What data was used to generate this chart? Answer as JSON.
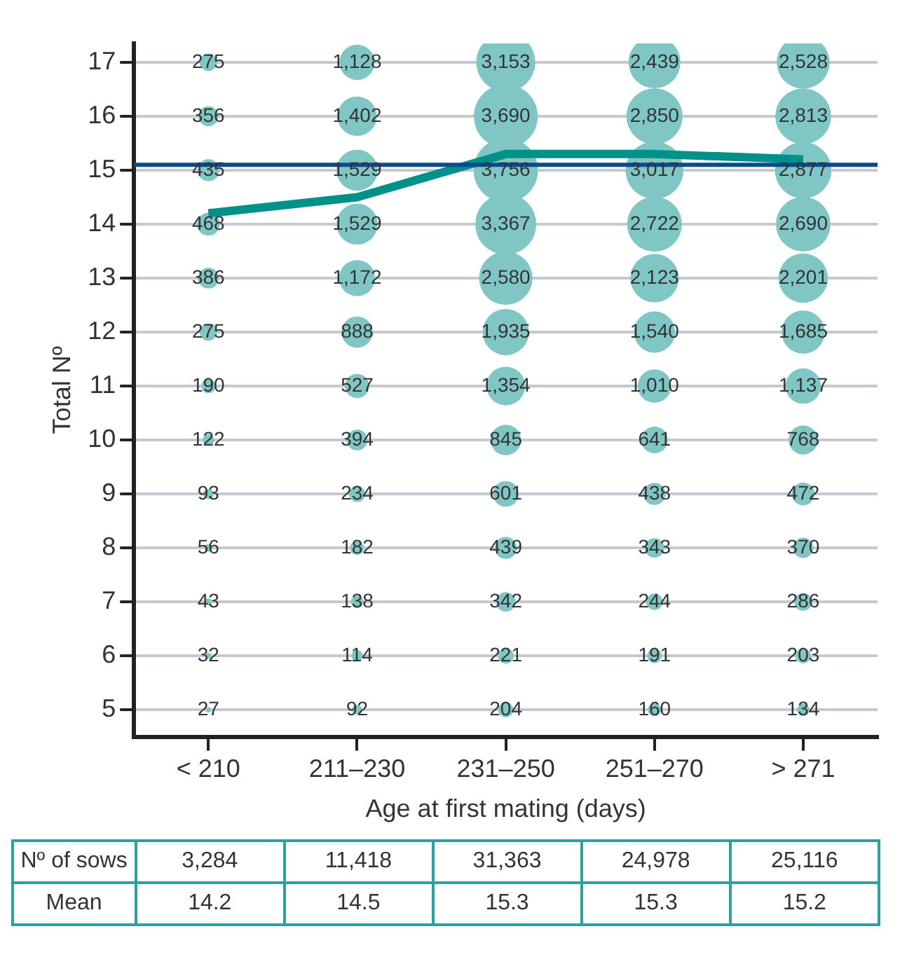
{
  "chart_data": {
    "type": "bubble",
    "xlabel": "Age at first mating (days)",
    "ylabel": "Total Nº",
    "categories": [
      "< 210",
      "211–230",
      "231–250",
      "251–270",
      "> 271"
    ],
    "ylim": [
      4.5,
      17.35
    ],
    "yticks": [
      5,
      6,
      7,
      8,
      9,
      10,
      11,
      12,
      13,
      14,
      15,
      16,
      17
    ],
    "grid": "y",
    "series": [
      {
        "x": [
          "< 210",
          "< 210",
          "< 210",
          "< 210",
          "< 210",
          "< 210",
          "< 210",
          "< 210",
          "< 210",
          "< 210",
          "< 210",
          "< 210",
          "< 210"
        ],
        "values": [
          5,
          6,
          7,
          8,
          9,
          10,
          11,
          12,
          13,
          14,
          15,
          16,
          17
        ],
        "sizes": [
          27,
          32,
          43,
          56,
          93,
          122,
          190,
          275,
          386,
          468,
          435,
          356,
          275
        ],
        "value_labels": [
          "27",
          "32",
          "43",
          "56",
          "93",
          "122",
          "190",
          "275",
          "386",
          "468",
          "435",
          "356",
          "275"
        ],
        "color": "#80c6c4"
      },
      {
        "x": [
          "211–230",
          "211–230",
          "211–230",
          "211–230",
          "211–230",
          "211–230",
          "211–230",
          "211–230",
          "211–230",
          "211–230",
          "211–230",
          "211–230",
          "211–230"
        ],
        "values": [
          5,
          6,
          7,
          8,
          9,
          10,
          11,
          12,
          13,
          14,
          15,
          16,
          17
        ],
        "sizes": [
          92,
          114,
          138,
          182,
          234,
          394,
          527,
          888,
          1172,
          1529,
          1529,
          1402,
          1128
        ],
        "value_labels": [
          "92",
          "114",
          "138",
          "182",
          "234",
          "394",
          "527",
          "888",
          "1,172",
          "1,529",
          "1,529",
          "1,402",
          "1,128"
        ],
        "color": "#80c6c4"
      },
      {
        "x": [
          "231–250",
          "231–250",
          "231–250",
          "231–250",
          "231–250",
          "231–250",
          "231–250",
          "231–250",
          "231–250",
          "231–250",
          "231–250",
          "231–250",
          "231–250"
        ],
        "values": [
          5,
          6,
          7,
          8,
          9,
          10,
          11,
          12,
          13,
          14,
          15,
          16,
          17
        ],
        "sizes": [
          204,
          221,
          342,
          439,
          601,
          845,
          1354,
          1935,
          2580,
          3367,
          3756,
          3690,
          3153
        ],
        "value_labels": [
          "204",
          "221",
          "342",
          "439",
          "601",
          "845",
          "1,354",
          "1,935",
          "2,580",
          "3,367",
          "3,756",
          "3,690",
          "3,153"
        ],
        "color": "#80c6c4"
      },
      {
        "x": [
          "251–270",
          "251–270",
          "251–270",
          "251–270",
          "251–270",
          "251–270",
          "251–270",
          "251–270",
          "251–270",
          "251–270",
          "251–270",
          "251–270",
          "251–270"
        ],
        "values": [
          5,
          6,
          7,
          8,
          9,
          10,
          11,
          12,
          13,
          14,
          15,
          16,
          17
        ],
        "sizes": [
          160,
          191,
          244,
          343,
          438,
          641,
          1010,
          1540,
          2123,
          2722,
          3017,
          2850,
          2439
        ],
        "value_labels": [
          "160",
          "191",
          "244",
          "343",
          "438",
          "641",
          "1,010",
          "1,540",
          "2,123",
          "2,722",
          "3,017",
          "2,850",
          "2,439"
        ],
        "color": "#80c6c4"
      },
      {
        "x": [
          "> 271",
          "> 271",
          "> 271",
          "> 271",
          "> 271",
          "> 271",
          "> 271",
          "> 271",
          "> 271",
          "> 271",
          "> 271",
          "> 271",
          "> 271"
        ],
        "values": [
          5,
          6,
          7,
          8,
          9,
          10,
          11,
          12,
          13,
          14,
          15,
          16,
          17
        ],
        "sizes": [
          134,
          203,
          286,
          370,
          472,
          768,
          1137,
          1685,
          2201,
          2690,
          2877,
          2813,
          2528
        ],
        "value_labels": [
          "134",
          "203",
          "286",
          "370",
          "472",
          "768",
          "1,137",
          "1,685",
          "2,201",
          "2,690",
          "2,877",
          "2,813",
          "2,528"
        ],
        "color": "#80c6c4"
      },
      {
        "name": "Mean",
        "type": "line",
        "values": [
          14.2,
          14.5,
          15.3,
          15.3,
          15.2
        ],
        "value_labels": [
          "14.2",
          "14.5",
          "15.3",
          "15.3",
          "15.2"
        ],
        "color": "#00918a"
      }
    ],
    "ref_lines": [
      {
        "axis": "y",
        "value": 15.1,
        "color": "#0b4a8e"
      }
    ],
    "totals": [
      "3,284",
      "11,418",
      "31,363",
      "24,978",
      "25,116"
    ],
    "annotations": [
      "Nº of sows"
    ]
  }
}
